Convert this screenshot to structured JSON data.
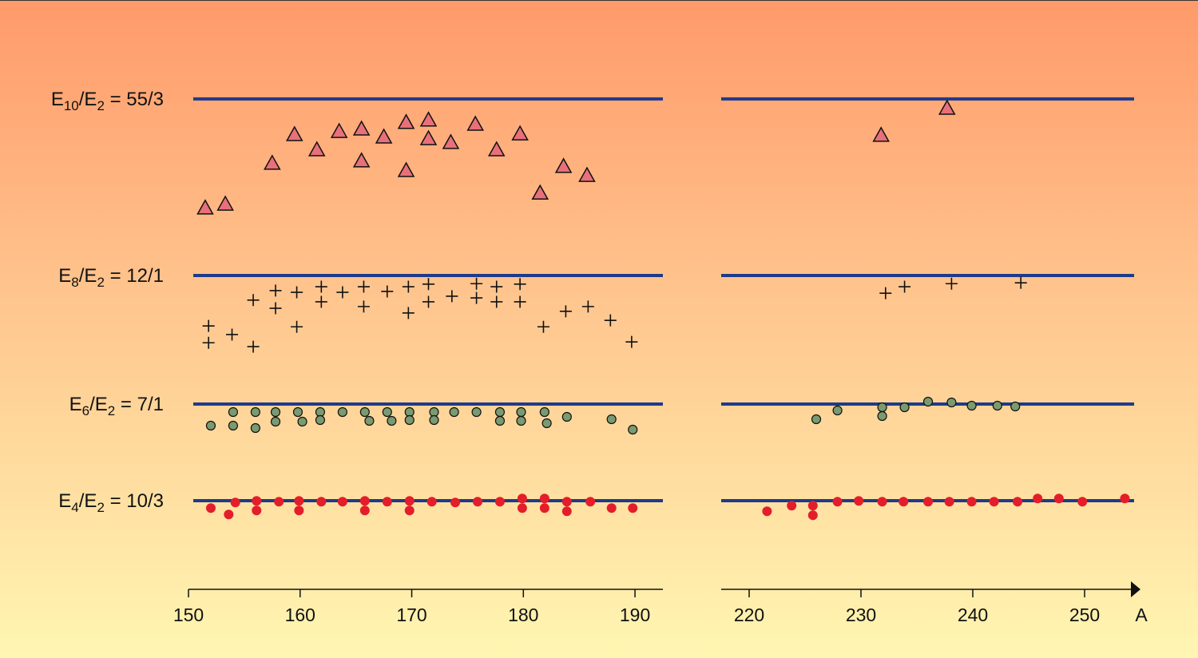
{
  "chart_data": {
    "type": "scatter",
    "xlabel": "A",
    "x_axes": [
      {
        "xlim": [
          150,
          192.5
        ],
        "xticks": [
          150,
          160,
          170,
          180,
          190
        ]
      },
      {
        "xlim": [
          217.5,
          255
        ],
        "xticks": [
          220,
          230,
          240,
          250
        ]
      }
    ],
    "panels": [
      {
        "label_parts": [
          "E",
          "10",
          "/E",
          "2",
          " = "
        ],
        "reference": {
          "value": 18.3333,
          "label": "55/3"
        },
        "ylim": [
          14.5,
          19
        ],
        "marker": "triangle",
        "color": "#e8707a",
        "x": [
          151.5,
          153.3,
          157.5,
          159.5,
          161.5,
          163.5,
          165.5,
          165.5,
          167.5,
          169.5,
          169.5,
          171.5,
          171.5,
          173.5,
          175.7,
          177.6,
          179.7,
          181.5,
          183.6,
          185.7,
          231.8,
          237.7
        ],
        "y": [
          15.15,
          15.26,
          16.44,
          17.27,
          16.83,
          17.36,
          17.43,
          16.51,
          17.2,
          17.62,
          16.23,
          17.69,
          17.15,
          17.04,
          17.57,
          16.83,
          17.29,
          15.58,
          16.35,
          16.09,
          17.25,
          18.03
        ]
      },
      {
        "label_parts": [
          "E",
          "8",
          "/E",
          "2",
          " = "
        ],
        "reference": {
          "value": 12,
          "label": "12/1"
        },
        "ylim": [
          10,
          12.5
        ],
        "marker": "plus",
        "color": "#111111",
        "x": [
          151.8,
          151.8,
          153.9,
          155.8,
          155.8,
          157.8,
          157.8,
          159.7,
          159.7,
          161.9,
          161.9,
          163.8,
          165.7,
          165.7,
          167.8,
          169.7,
          169.7,
          171.5,
          171.5,
          173.6,
          175.8,
          175.8,
          177.6,
          177.6,
          179.7,
          179.7,
          181.8,
          183.8,
          185.8,
          187.8,
          189.7,
          232.2,
          233.9,
          238.1,
          244.3
        ],
        "y": [
          10.83,
          10.44,
          10.63,
          11.43,
          10.35,
          11.65,
          11.24,
          11.61,
          10.81,
          11.74,
          11.39,
          11.61,
          11.74,
          11.28,
          11.63,
          11.74,
          11.13,
          11.8,
          11.39,
          11.52,
          11.81,
          11.48,
          11.74,
          11.39,
          11.8,
          11.39,
          10.81,
          11.17,
          11.28,
          10.96,
          10.46,
          11.59,
          11.74,
          11.81,
          11.83
        ]
      },
      {
        "label_parts": [
          "E",
          "6",
          "/E",
          "2",
          " = "
        ],
        "reference": {
          "value": 7,
          "label": "7/1"
        },
        "ylim": [
          6.6,
          7.1
        ],
        "marker": "circle",
        "color": "#7a9a70",
        "x": [
          152,
          154,
          154,
          156,
          156,
          157.8,
          157.8,
          159.8,
          160.2,
          161.8,
          161.8,
          163.8,
          165.8,
          166.2,
          167.8,
          168.2,
          169.8,
          169.8,
          172,
          172,
          173.8,
          175.8,
          177.9,
          177.9,
          179.8,
          179.8,
          181.9,
          182.1,
          183.9,
          187.9,
          189.8,
          226,
          227.9,
          231.9,
          231.9,
          233.9,
          236,
          238.1,
          239.9,
          242.2,
          243.8
        ],
        "y": [
          6.73,
          6.9,
          6.73,
          6.9,
          6.7,
          6.9,
          6.78,
          6.9,
          6.78,
          6.9,
          6.8,
          6.9,
          6.9,
          6.79,
          6.9,
          6.79,
          6.9,
          6.8,
          6.9,
          6.8,
          6.9,
          6.9,
          6.9,
          6.79,
          6.9,
          6.79,
          6.9,
          6.76,
          6.84,
          6.81,
          6.68,
          6.81,
          6.92,
          6.96,
          6.85,
          6.96,
          7.03,
          7.02,
          6.98,
          6.98,
          6.97
        ]
      },
      {
        "label_parts": [
          "E",
          "4",
          "/E",
          "2",
          " = "
        ],
        "reference": {
          "value": 3.3333,
          "label": "10/3"
        },
        "ylim": [
          3.25,
          3.35
        ],
        "marker": "dot",
        "color": "#e31e2a",
        "x": [
          152,
          153.6,
          154.2,
          156.1,
          156.1,
          158.1,
          159.9,
          159.9,
          161.9,
          163.8,
          165.8,
          165.8,
          167.8,
          169.8,
          169.8,
          171.8,
          173.9,
          175.9,
          177.9,
          179.9,
          179.9,
          181.9,
          181.9,
          183.9,
          183.9,
          186,
          187.9,
          189.8,
          221.6,
          223.8,
          225.7,
          225.7,
          227.9,
          229.8,
          231.9,
          233.8,
          236,
          237.9,
          239.9,
          241.9,
          244,
          245.8,
          247.7,
          249.8,
          253.6
        ],
        "y": [
          3.315,
          3.299,
          3.329,
          3.333,
          3.309,
          3.331,
          3.333,
          3.309,
          3.331,
          3.331,
          3.333,
          3.309,
          3.331,
          3.333,
          3.309,
          3.331,
          3.329,
          3.331,
          3.331,
          3.339,
          3.315,
          3.339,
          3.315,
          3.331,
          3.307,
          3.331,
          3.315,
          3.315,
          3.307,
          3.321,
          3.321,
          3.297,
          3.331,
          3.333,
          3.331,
          3.331,
          3.331,
          3.331,
          3.331,
          3.331,
          3.331,
          3.339,
          3.339,
          3.331,
          3.339
        ]
      }
    ]
  }
}
